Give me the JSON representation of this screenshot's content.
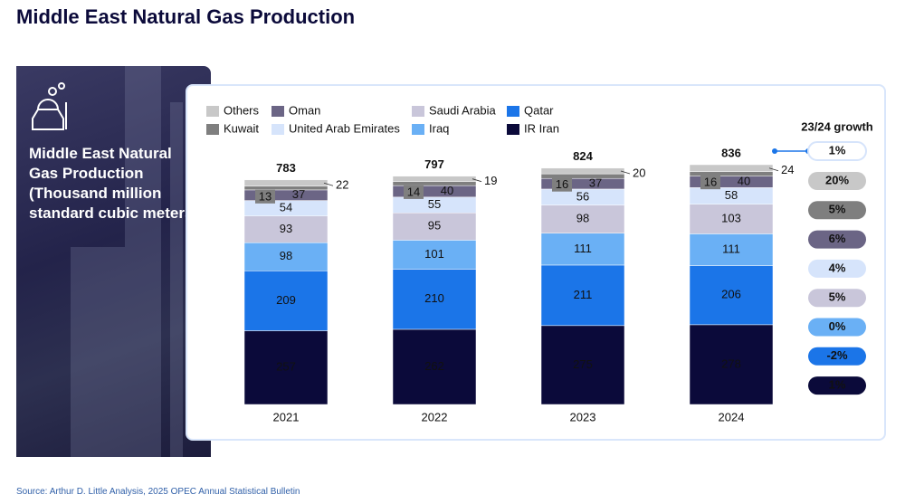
{
  "title": "Middle East Natural Gas Production",
  "panel_text": "Middle East Natural Gas Production (Thousand million standard cubic meters)",
  "source": "Source: Arthur D. Little Analysis, 2025 OPEC Annual Statistical Bulletin",
  "chart_data": {
    "type": "bar",
    "stacked": true,
    "categories": [
      "2021",
      "2022",
      "2023",
      "2024"
    ],
    "totals": [
      783,
      797,
      824,
      836
    ],
    "growth_title": "23/24 growth",
    "total_growth": "1%",
    "series": [
      {
        "name": "IR Iran",
        "color": "#0b0a3a",
        "values": [
          257,
          262,
          275,
          278
        ],
        "growth": "1%"
      },
      {
        "name": "Qatar",
        "color": "#1b75e8",
        "values": [
          209,
          210,
          211,
          206
        ],
        "growth": "-2%"
      },
      {
        "name": "Iraq",
        "color": "#6ab0f5",
        "values": [
          98,
          101,
          111,
          111
        ],
        "growth": "0%"
      },
      {
        "name": "Saudi Arabia",
        "color": "#c9c6da",
        "values": [
          93,
          95,
          98,
          103
        ],
        "growth": "5%"
      },
      {
        "name": "United Arab Emirates",
        "color": "#d6e4fb",
        "values": [
          54,
          55,
          56,
          58
        ],
        "growth": "4%"
      },
      {
        "name": "Oman",
        "color": "#6b6585",
        "values": [
          37,
          40,
          37,
          40
        ],
        "growth": "6%"
      },
      {
        "name": "Kuwait",
        "color": "#7f7f7f",
        "values": [
          13,
          14,
          16,
          16
        ],
        "growth": "5%"
      },
      {
        "name": "Others",
        "color": "#c8c8c8",
        "values": [
          22,
          19,
          20,
          24
        ],
        "growth": "20%"
      }
    ]
  }
}
